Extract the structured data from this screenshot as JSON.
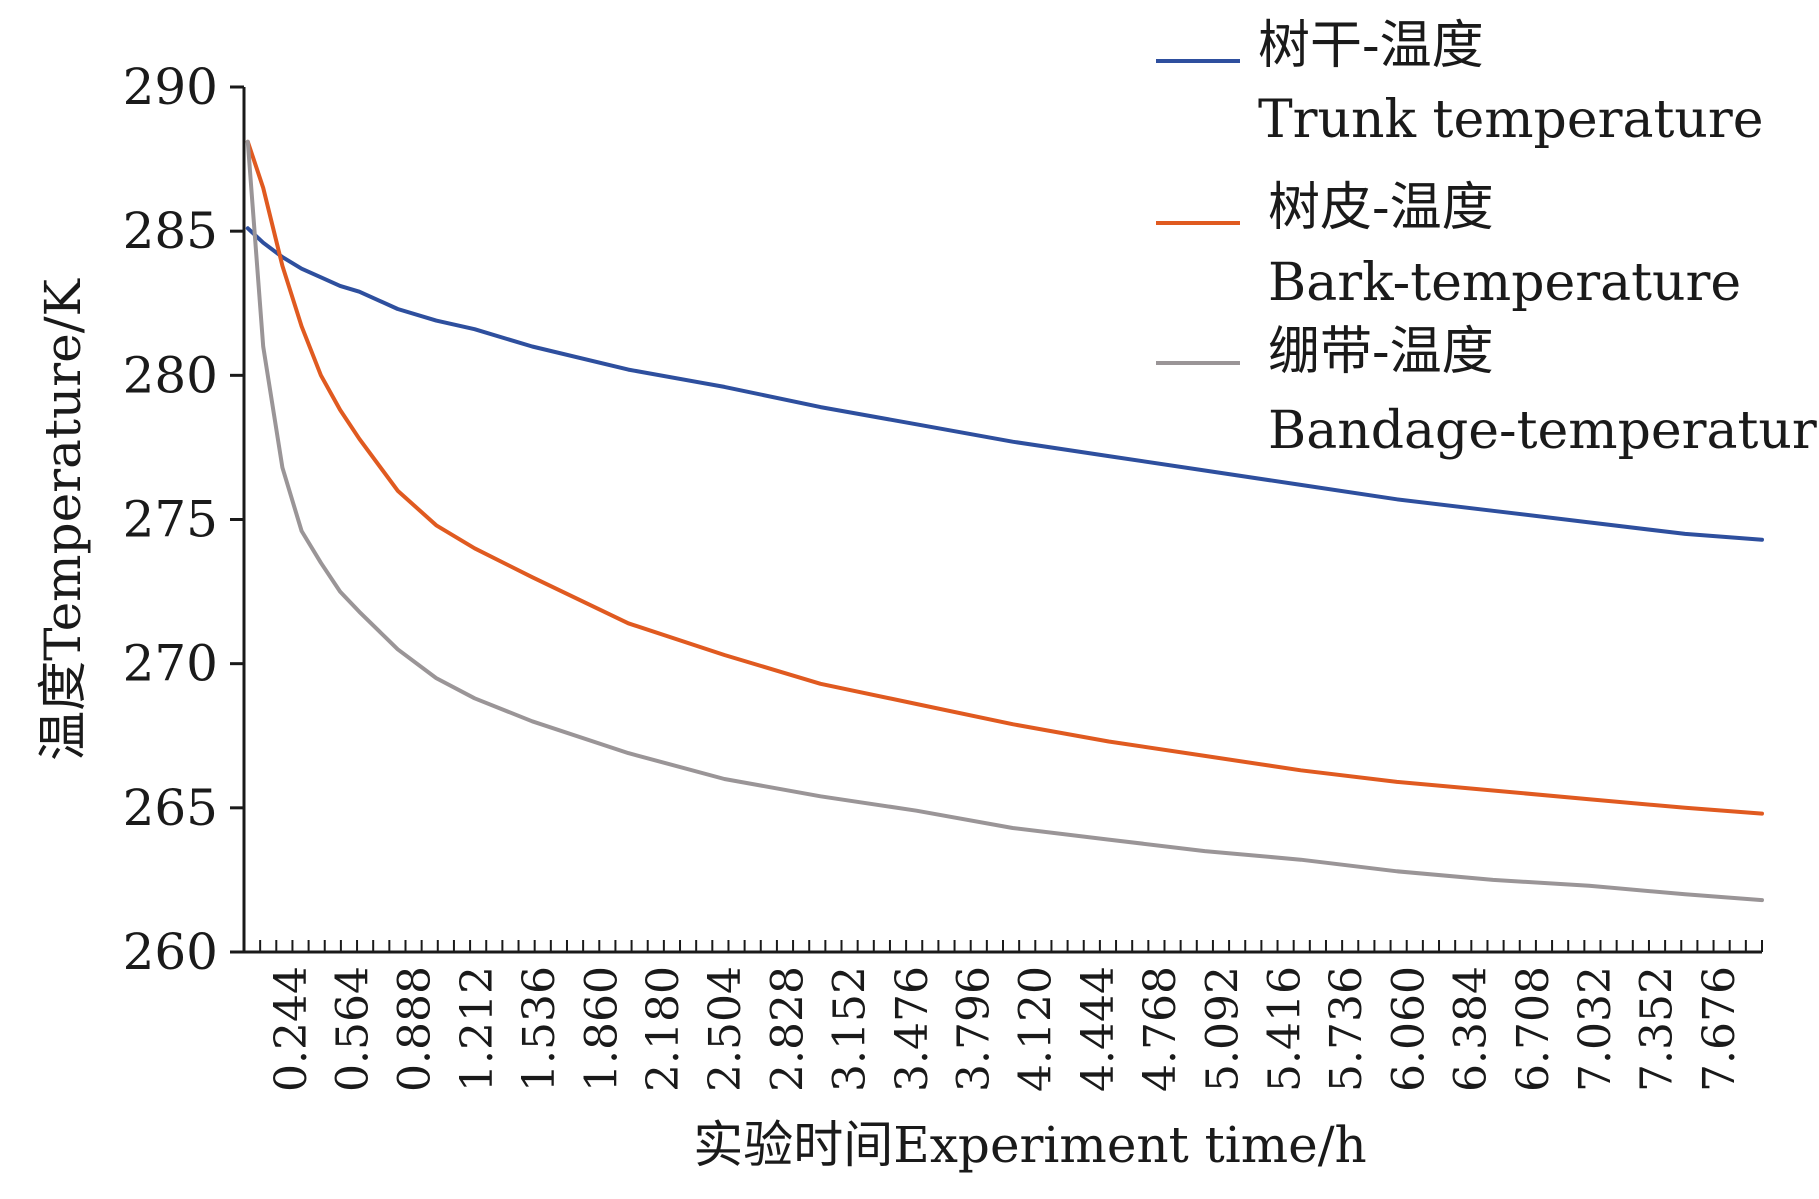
{
  "chart_data": {
    "type": "line",
    "title": "",
    "xlabel": "实验时间Experiment time/h",
    "ylabel": "温度Temperature/K",
    "ylim": [
      260,
      290
    ],
    "yticks": [
      "260",
      "265",
      "270",
      "275",
      "280",
      "285",
      "290"
    ],
    "xlim": [
      0,
      7.9
    ],
    "xtick_labels": [
      "0.244",
      "0.564",
      "0.888",
      "1.212",
      "1.536",
      "1.860",
      "2.180",
      "2.504",
      "2.828",
      "3.152",
      "3.476",
      "3.796",
      "4.120",
      "4.444",
      "4.768",
      "5.092",
      "5.416",
      "5.736",
      "6.060",
      "6.384",
      "6.708",
      "7.032",
      "7.352",
      "7.676"
    ],
    "grid": false,
    "legend_position": "top-right",
    "x": [
      0.02,
      0.1,
      0.2,
      0.3,
      0.4,
      0.5,
      0.6,
      0.8,
      1.0,
      1.2,
      1.5,
      2.0,
      2.5,
      3.0,
      3.5,
      4.0,
      4.5,
      5.0,
      5.5,
      6.0,
      6.5,
      7.0,
      7.5,
      7.9
    ],
    "series": [
      {
        "name": "树干-温度",
        "name_en": "Trunk temperature",
        "color": "#2e4f9e",
        "values": [
          285.1,
          284.6,
          284.1,
          283.7,
          283.4,
          283.1,
          282.9,
          282.3,
          281.9,
          281.6,
          281.0,
          280.2,
          279.6,
          278.9,
          278.3,
          277.7,
          277.2,
          276.7,
          276.2,
          275.7,
          275.3,
          274.9,
          274.5,
          274.3
        ]
      },
      {
        "name": "树皮-温度",
        "name_en": "Bark-temperature",
        "color": "#e05a20",
        "values": [
          288.1,
          286.5,
          283.8,
          281.7,
          280.0,
          278.8,
          277.8,
          276.0,
          274.8,
          274.0,
          273.0,
          271.4,
          270.3,
          269.3,
          268.6,
          267.9,
          267.3,
          266.8,
          266.3,
          265.9,
          265.6,
          265.3,
          265.0,
          264.8
        ]
      },
      {
        "name": "绷带-温度",
        "name_en": "Bandage-temperature",
        "color": "#9a9597",
        "values": [
          288.1,
          281.0,
          276.8,
          274.6,
          273.5,
          272.5,
          271.8,
          270.5,
          269.5,
          268.8,
          268.0,
          266.9,
          266.0,
          265.4,
          264.9,
          264.3,
          263.9,
          263.5,
          263.2,
          262.8,
          262.5,
          262.3,
          262.0,
          261.8
        ]
      }
    ]
  }
}
